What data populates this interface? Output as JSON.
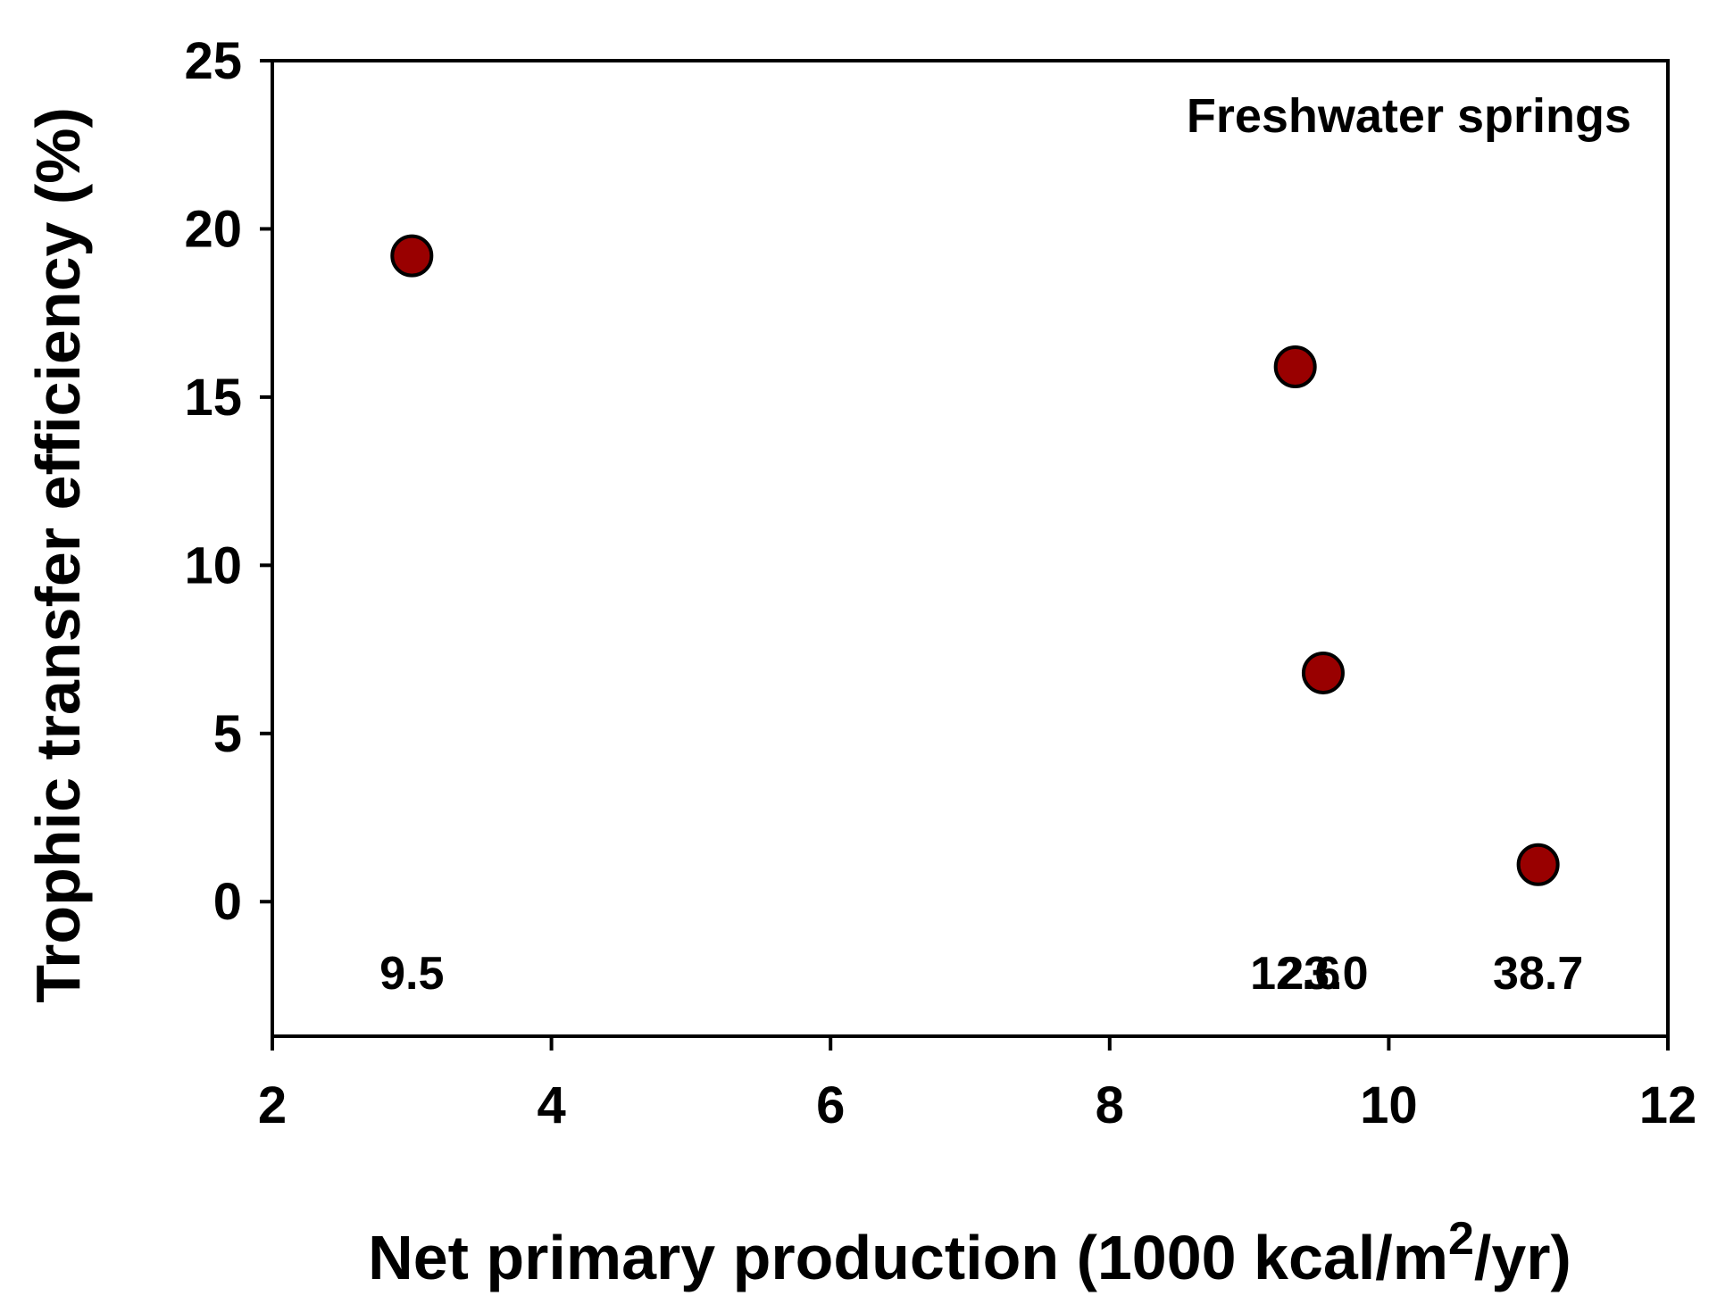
{
  "chart_data": {
    "type": "scatter",
    "title": "",
    "annotation": "Freshwater springs",
    "xlabel": {
      "main": "Net primary production (1000 kcal/m",
      "superscript": "2",
      "suffix": "/yr)"
    },
    "ylabel": "Trophic transfer efficiency (%)",
    "xlim": [
      2,
      12
    ],
    "ylim": [
      -4,
      25
    ],
    "xticks": [
      2,
      4,
      6,
      8,
      10,
      12
    ],
    "yticks": [
      0,
      5,
      10,
      15,
      20,
      25
    ],
    "grid": false,
    "marker_color": "#990000",
    "marker_edge_color": "#000000",
    "points": [
      {
        "x": 3.0,
        "y": 19.2,
        "label": "9.5"
      },
      {
        "x": 9.33,
        "y": 15.9,
        "label": "12.6"
      },
      {
        "x": 9.53,
        "y": 6.8,
        "label": "23.0"
      },
      {
        "x": 11.07,
        "y": 1.1,
        "label": "38.7"
      }
    ]
  }
}
